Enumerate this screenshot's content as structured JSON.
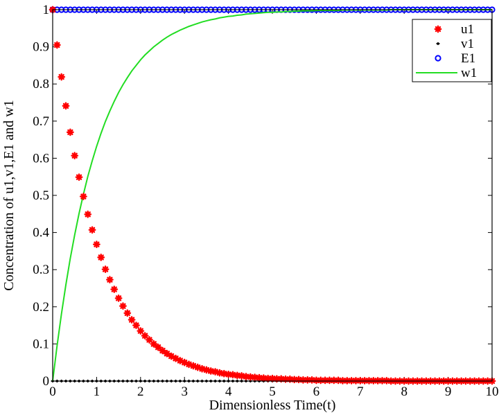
{
  "chart_data": {
    "type": "scatter",
    "title": "",
    "xlabel": "Dimensionless Time(t)",
    "ylabel": "Concentration of u1,v1,E1 and w1",
    "xlim": [
      0,
      10
    ],
    "ylim": [
      0,
      1
    ],
    "x_ticks": [
      "0",
      "1",
      "2",
      "3",
      "4",
      "5",
      "6",
      "7",
      "8",
      "9",
      "10"
    ],
    "y_ticks": [
      "0",
      "0.1",
      "0.2",
      "0.3",
      "0.4",
      "0.5",
      "0.6",
      "0.7",
      "0.8",
      "0.9",
      "1"
    ],
    "grid": false,
    "legend_position": "top-right",
    "x": [
      0,
      0.1,
      0.2,
      0.3,
      0.4,
      0.5,
      0.6,
      0.7,
      0.8,
      0.9,
      1.0,
      1.1,
      1.2,
      1.3,
      1.4,
      1.5,
      1.6,
      1.7,
      1.8,
      1.9,
      2.0,
      2.1,
      2.2,
      2.3,
      2.4,
      2.5,
      2.6,
      2.7,
      2.8,
      2.9,
      3.0,
      3.1,
      3.2,
      3.3,
      3.4,
      3.5,
      3.6,
      3.7,
      3.8,
      3.9,
      4.0,
      4.1,
      4.2,
      4.3,
      4.4,
      4.5,
      4.6,
      4.7,
      4.8,
      4.9,
      5.0,
      5.1,
      5.2,
      5.3,
      5.4,
      5.5,
      5.6,
      5.7,
      5.8,
      5.9,
      6.0,
      6.1,
      6.2,
      6.3,
      6.4,
      6.5,
      6.6,
      6.7,
      6.8,
      6.9,
      7.0,
      7.1,
      7.2,
      7.3,
      7.4,
      7.5,
      7.6,
      7.7,
      7.8,
      7.9,
      8.0,
      8.1,
      8.2,
      8.3,
      8.4,
      8.5,
      8.6,
      8.7,
      8.8,
      8.9,
      9.0,
      9.1,
      9.2,
      9.3,
      9.4,
      9.5,
      9.6,
      9.7,
      9.8,
      9.9,
      10.0
    ],
    "series": [
      {
        "name": "u1",
        "marker": "star",
        "color": "#ff0000",
        "values": [
          1,
          0.905,
          0.819,
          0.741,
          0.67,
          0.607,
          0.549,
          0.497,
          0.449,
          0.407,
          0.368,
          0.333,
          0.301,
          0.273,
          0.247,
          0.223,
          0.202,
          0.183,
          0.165,
          0.15,
          0.135,
          0.122,
          0.111,
          0.1,
          0.091,
          0.082,
          0.074,
          0.067,
          0.061,
          0.055,
          0.05,
          0.045,
          0.041,
          0.037,
          0.033,
          0.03,
          0.027,
          0.025,
          0.022,
          0.02,
          0.018,
          0.017,
          0.015,
          0.014,
          0.012,
          0.011,
          0.01,
          0.009,
          0.008,
          0.007,
          0.007,
          0.006,
          0.006,
          0.005,
          0.005,
          0.004,
          0.004,
          0.003,
          0.003,
          0.003,
          0.002,
          0.002,
          0.002,
          0.002,
          0.002,
          0.002,
          0.001,
          0.001,
          0.001,
          0.001,
          0.001,
          0.001,
          0.001,
          0.001,
          0.001,
          0.001,
          0.001,
          0,
          0,
          0,
          0,
          0,
          0,
          0,
          0,
          0,
          0,
          0,
          0,
          0,
          0,
          0,
          0,
          0,
          0,
          0,
          0,
          0,
          0,
          0,
          0
        ]
      },
      {
        "name": "v1",
        "marker": "dot",
        "color": "#000000",
        "values": [
          0,
          0,
          0,
          0,
          0,
          0,
          0,
          0,
          0,
          0,
          0,
          0,
          0,
          0,
          0,
          0,
          0,
          0,
          0,
          0,
          0,
          0,
          0,
          0,
          0,
          0,
          0,
          0,
          0,
          0,
          0,
          0,
          0,
          0,
          0,
          0,
          0,
          0,
          0,
          0,
          0,
          0,
          0,
          0,
          0,
          0,
          0,
          0,
          0,
          0,
          0,
          0,
          0,
          0,
          0,
          0,
          0,
          0,
          0,
          0,
          0,
          0,
          0,
          0,
          0,
          0,
          0,
          0,
          0,
          0,
          0,
          0,
          0,
          0,
          0,
          0,
          0,
          0,
          0,
          0,
          0,
          0,
          0,
          0,
          0,
          0,
          0,
          0,
          0,
          0,
          0,
          0,
          0,
          0,
          0,
          0,
          0,
          0,
          0,
          0,
          0
        ]
      },
      {
        "name": "E1",
        "marker": "circle",
        "color": "#0000ff",
        "values": [
          1,
          1,
          1,
          1,
          1,
          1,
          1,
          1,
          1,
          1,
          1,
          1,
          1,
          1,
          1,
          1,
          1,
          1,
          1,
          1,
          1,
          1,
          1,
          1,
          1,
          1,
          1,
          1,
          1,
          1,
          1,
          1,
          1,
          1,
          1,
          1,
          1,
          1,
          1,
          1,
          1,
          1,
          1,
          1,
          1,
          1,
          1,
          1,
          1,
          1,
          1,
          1,
          1,
          1,
          1,
          1,
          1,
          1,
          1,
          1,
          1,
          1,
          1,
          1,
          1,
          1,
          1,
          1,
          1,
          1,
          1,
          1,
          1,
          1,
          1,
          1,
          1,
          1,
          1,
          1,
          1,
          1,
          1,
          1,
          1,
          1,
          1,
          1,
          1,
          1,
          1,
          1,
          1,
          1,
          1,
          1,
          1,
          1,
          1,
          1,
          1
        ]
      },
      {
        "name": "w1",
        "marker": "line",
        "color": "#22dd22",
        "values": [
          0,
          0.095,
          0.181,
          0.259,
          0.33,
          0.393,
          0.451,
          0.503,
          0.551,
          0.593,
          0.632,
          0.667,
          0.699,
          0.727,
          0.753,
          0.777,
          0.798,
          0.817,
          0.835,
          0.85,
          0.865,
          0.878,
          0.889,
          0.9,
          0.909,
          0.918,
          0.926,
          0.933,
          0.939,
          0.945,
          0.95,
          0.955,
          0.959,
          0.963,
          0.967,
          0.97,
          0.973,
          0.975,
          0.978,
          0.98,
          0.982,
          0.983,
          0.985,
          0.986,
          0.988,
          0.989,
          0.99,
          0.991,
          0.992,
          0.993,
          0.993,
          0.994,
          0.994,
          0.995,
          0.995,
          0.996,
          0.996,
          0.997,
          0.997,
          0.997,
          0.998,
          0.998,
          0.998,
          0.998,
          0.998,
          0.998,
          0.999,
          0.999,
          0.999,
          0.999,
          0.999,
          0.999,
          0.999,
          0.999,
          0.999,
          0.999,
          0.999,
          1,
          1,
          1,
          1,
          1,
          1,
          1,
          1,
          1,
          1,
          1,
          1,
          1,
          1,
          1,
          1,
          1,
          1,
          1,
          1,
          1,
          1,
          1,
          1
        ]
      }
    ]
  }
}
